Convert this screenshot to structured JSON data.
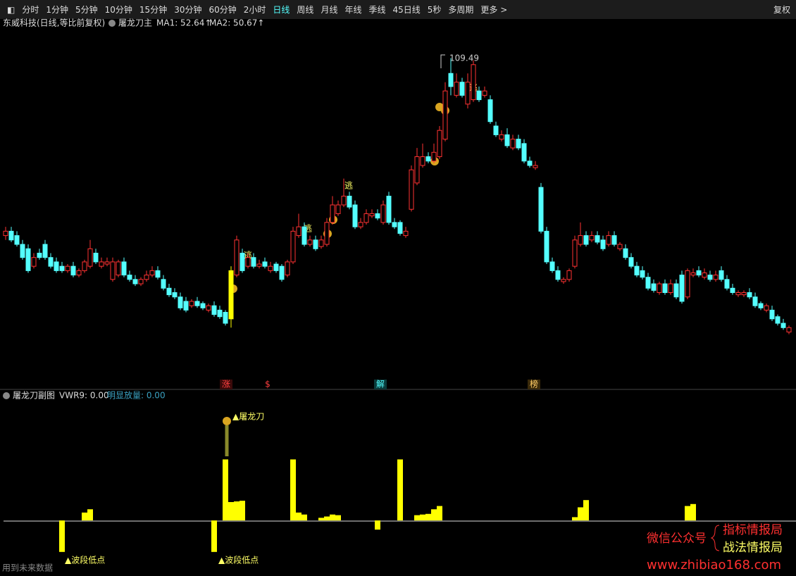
{
  "toolbar": {
    "items": [
      "分时",
      "1分钟",
      "5分钟",
      "10分钟",
      "15分钟",
      "30分钟",
      "60分钟",
      "2小时",
      "日线",
      "周线",
      "月线",
      "年线",
      "季线",
      "45日线",
      "5秒",
      "多周期",
      "更多 >"
    ],
    "active": 8,
    "right": "复权"
  },
  "main": {
    "stock": "东威科技(日线,等比前复权)",
    "indicator": "屠龙刀主",
    "ma": [
      "MA1: 52.64↑",
      "MA2: 50.67↑"
    ],
    "peak_label": "109.49",
    "escape": [
      "逃",
      "逃",
      "逃",
      "逃"
    ],
    "markers": [
      "涨",
      "$",
      "解",
      "榜"
    ]
  },
  "sub": {
    "title": "屠龙刀副图",
    "vwr": "VWR9: 0.00",
    "volume": "明显放量: 0.00",
    "signal": "▲屠龙刀",
    "lows": [
      "▲波段低点",
      "▲波段低点"
    ],
    "note": "用到未来数据"
  },
  "watermark": {
    "wechat": "微信公众号",
    "names": [
      "指标情报局",
      "战法情报局"
    ],
    "url": "www.zhibiao168.com"
  },
  "chart_data": [
    {
      "type": "candlestick",
      "up_color": "#ff3232",
      "down_color": "#54ffff",
      "highlight": [
        40
      ],
      "highlight_color": "#ffff00",
      "ylim": [
        36,
        116
      ],
      "candles": [
        [
          69,
          71,
          68,
          70
        ],
        [
          70,
          71,
          67.5,
          68
        ],
        [
          69,
          70,
          66.5,
          67
        ],
        [
          67,
          68,
          63.5,
          64
        ],
        [
          66,
          67,
          60.5,
          61
        ],
        [
          62,
          65,
          61.5,
          64
        ],
        [
          65,
          66,
          63.5,
          64
        ],
        [
          67,
          68,
          63.5,
          64
        ],
        [
          64,
          65,
          61.5,
          62
        ],
        [
          63,
          64,
          60.5,
          61
        ],
        [
          62,
          63,
          60.5,
          61
        ],
        [
          61,
          62.5,
          60.5,
          62
        ],
        [
          62,
          63,
          59.5,
          60
        ],
        [
          60,
          61.5,
          59.5,
          61
        ],
        [
          61,
          63.5,
          60.5,
          63
        ],
        [
          62,
          68,
          61.5,
          66
        ],
        [
          65,
          66,
          62.5,
          63
        ],
        [
          62,
          64,
          61.5,
          63
        ],
        [
          62.5,
          64,
          62,
          63
        ],
        [
          59,
          64,
          58.5,
          63
        ],
        [
          60,
          63.5,
          59.5,
          63
        ],
        [
          63,
          64,
          59.5,
          60
        ],
        [
          60,
          61,
          58.5,
          59
        ],
        [
          59,
          60,
          57.5,
          58
        ],
        [
          58,
          59.5,
          57.5,
          59
        ],
        [
          59,
          61,
          58.5,
          60
        ],
        [
          60,
          62,
          59.5,
          61
        ],
        [
          61,
          62,
          59,
          59.5
        ],
        [
          59,
          60,
          56.5,
          57
        ],
        [
          57,
          58,
          55,
          55.5
        ],
        [
          56,
          57,
          54.5,
          55
        ],
        [
          55,
          56,
          52,
          52.5
        ],
        [
          54,
          55,
          51.5,
          52
        ],
        [
          53,
          54.5,
          52.5,
          54
        ],
        [
          54,
          55,
          52.5,
          53
        ],
        [
          53.5,
          54,
          52,
          52.5
        ],
        [
          52,
          53.5,
          51.5,
          53
        ],
        [
          53,
          54,
          50.5,
          51
        ],
        [
          52,
          53,
          50,
          50.5
        ],
        [
          51.5,
          52,
          48.5,
          49
        ],
        [
          50,
          62,
          48,
          61
        ],
        [
          60,
          69,
          59.5,
          68
        ],
        [
          65,
          66,
          60.5,
          61
        ],
        [
          62,
          65,
          61.5,
          64
        ],
        [
          64,
          65,
          61.5,
          62
        ],
        [
          62,
          63.5,
          61.5,
          62.5
        ],
        [
          63,
          64,
          61.5,
          62
        ],
        [
          61,
          63,
          60.5,
          62
        ],
        [
          62.5,
          63,
          60.5,
          61
        ],
        [
          62,
          62.5,
          58.5,
          59
        ],
        [
          60,
          63.5,
          59.5,
          63
        ],
        [
          63,
          71,
          62.5,
          70
        ],
        [
          69,
          74,
          68.5,
          71
        ],
        [
          71,
          72,
          66.5,
          67
        ],
        [
          67,
          69,
          66.5,
          68
        ],
        [
          68,
          69,
          65.5,
          66
        ],
        [
          66.5,
          69,
          66,
          68
        ],
        [
          67,
          73,
          66.5,
          72
        ],
        [
          72,
          78,
          71.5,
          76
        ],
        [
          74,
          77,
          73.5,
          76
        ],
        [
          76,
          82,
          75.5,
          78
        ],
        [
          78,
          79,
          75,
          75.5
        ],
        [
          76,
          77,
          70.5,
          71
        ],
        [
          71,
          73,
          70.5,
          72
        ],
        [
          72,
          75,
          71.5,
          74
        ],
        [
          73.5,
          75,
          73,
          74
        ],
        [
          74,
          75,
          72.5,
          73
        ],
        [
          72,
          77,
          71.5,
          76
        ],
        [
          78,
          79,
          71.5,
          72
        ],
        [
          72,
          73,
          70.5,
          71
        ],
        [
          72,
          72.5,
          69,
          69.5
        ],
        [
          69,
          71,
          68.5,
          70
        ],
        [
          75,
          85,
          74.5,
          84
        ],
        [
          81,
          89,
          80.5,
          87
        ],
        [
          85,
          90,
          84.5,
          87
        ],
        [
          87,
          88,
          85.5,
          86
        ],
        [
          86,
          90,
          85.5,
          88
        ],
        [
          87,
          94,
          86.5,
          93
        ],
        [
          91,
          104,
          90.5,
          102
        ],
        [
          106,
          109.49,
          101,
          103
        ],
        [
          101,
          106,
          100.5,
          104
        ],
        [
          104,
          105,
          100.5,
          101
        ],
        [
          99,
          106,
          98,
          104
        ],
        [
          100,
          109,
          99.5,
          108
        ],
        [
          102,
          103,
          99.5,
          100
        ],
        [
          101,
          103,
          100.5,
          102
        ],
        [
          100,
          101,
          94.5,
          95
        ],
        [
          94,
          95,
          91.5,
          92
        ],
        [
          91,
          93,
          90.5,
          92
        ],
        [
          92,
          93.5,
          89,
          89.5
        ],
        [
          89,
          92,
          88.5,
          91
        ],
        [
          91,
          92,
          88.5,
          89
        ],
        [
          90,
          91,
          85.5,
          86
        ],
        [
          86,
          87,
          84.5,
          85
        ],
        [
          84.5,
          86,
          84,
          85
        ],
        [
          80,
          81,
          69.5,
          70
        ],
        [
          70,
          71,
          62.5,
          63
        ],
        [
          63,
          64,
          60.5,
          61
        ],
        [
          61,
          62,
          58.5,
          59
        ],
        [
          58.5,
          59.5,
          58,
          59
        ],
        [
          59,
          61.5,
          58.5,
          61
        ],
        [
          62,
          69,
          61.5,
          68
        ],
        [
          67,
          72,
          66.5,
          69
        ],
        [
          69,
          70,
          66.5,
          67
        ],
        [
          68,
          70,
          67.5,
          69
        ],
        [
          69,
          70,
          67,
          67.5
        ],
        [
          68,
          69,
          65.5,
          66
        ],
        [
          67,
          70,
          66.5,
          69
        ],
        [
          69,
          70,
          66.5,
          67
        ],
        [
          66,
          67.5,
          65.5,
          67
        ],
        [
          66,
          67,
          63.5,
          64
        ],
        [
          64,
          65,
          61.5,
          62
        ],
        [
          62,
          63,
          59.5,
          60
        ],
        [
          61,
          62,
          59,
          59.5
        ],
        [
          59.5,
          60.5,
          56.5,
          57
        ],
        [
          58,
          59,
          56,
          56.5
        ],
        [
          56,
          58.5,
          55.5,
          58
        ],
        [
          58,
          59,
          55.5,
          56
        ],
        [
          56,
          59,
          55.5,
          58
        ],
        [
          58,
          59,
          54.5,
          55
        ],
        [
          60,
          61,
          53.5,
          54
        ],
        [
          55,
          61.5,
          54.5,
          61
        ],
        [
          60,
          61.5,
          59.5,
          60.5
        ],
        [
          61,
          62,
          59.5,
          60
        ],
        [
          59.5,
          61.5,
          59,
          60.5
        ],
        [
          60,
          61,
          58.5,
          59
        ],
        [
          59,
          61,
          58.5,
          60
        ],
        [
          61,
          62,
          58.5,
          59
        ],
        [
          59,
          60,
          56.5,
          57
        ],
        [
          57,
          58,
          55.5,
          56
        ],
        [
          55.5,
          56.5,
          55,
          56
        ],
        [
          55.5,
          56.5,
          55,
          56
        ],
        [
          56,
          57,
          54.5,
          55
        ],
        [
          55,
          56,
          52.5,
          53
        ],
        [
          53.5,
          54,
          52,
          52.5
        ],
        [
          52,
          53.5,
          51.5,
          53
        ],
        [
          52,
          53,
          49.5,
          50
        ],
        [
          50.5,
          51,
          48.5,
          49
        ],
        [
          49,
          50,
          47.5,
          48
        ],
        [
          47,
          48.5,
          46.5,
          48
        ]
      ]
    },
    {
      "type": "bar",
      "color": "#ffff00",
      "ylim": [
        -60,
        160
      ],
      "index": [
        10,
        14,
        15,
        37,
        39,
        40,
        41,
        42,
        51,
        52,
        53,
        56,
        57,
        58,
        59,
        66,
        70,
        73,
        74,
        75,
        76,
        77,
        101,
        102,
        103,
        121,
        122
      ],
      "values": [
        -48,
        12,
        17,
        -48,
        93,
        28,
        29,
        30,
        93,
        12,
        9,
        4,
        6,
        9,
        8,
        -14,
        93,
        8,
        9,
        10,
        17,
        22,
        5,
        20,
        31,
        22,
        25
      ]
    }
  ]
}
